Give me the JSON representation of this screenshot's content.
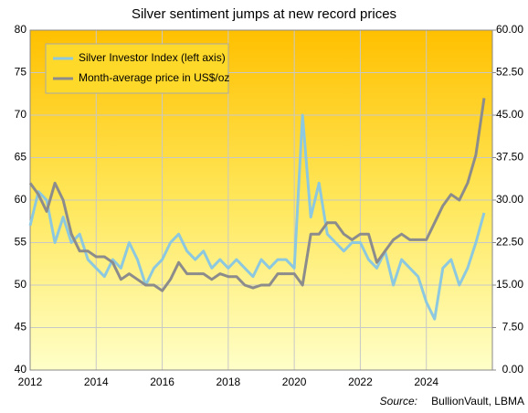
{
  "chart_data": {
    "type": "line",
    "title": "Silver sentiment jumps at new record prices",
    "source_label": "Source:",
    "source": "BullionVault, LBMA",
    "legend": "upper left",
    "grid": true,
    "xlim": [
      2012,
      2026
    ],
    "xticks": [
      2012,
      2014,
      2016,
      2018,
      2020,
      2022,
      2024
    ],
    "ylim": [
      40,
      80
    ],
    "yticks": [
      40,
      45,
      50,
      55,
      60,
      65,
      70,
      75,
      80
    ],
    "y2lim": [
      0,
      60
    ],
    "y2ticks": [
      {
        "value": 0,
        "label": "0.00"
      },
      {
        "value": 7.5,
        "label": "7.50"
      },
      {
        "value": 15,
        "label": "15.00"
      },
      {
        "value": 22.5,
        "label": "22.50"
      },
      {
        "value": 30,
        "label": "30.00"
      },
      {
        "value": 37.5,
        "label": "37.50"
      },
      {
        "value": 45,
        "label": "45.00"
      },
      {
        "value": 52.5,
        "label": "52.50"
      },
      {
        "value": 60,
        "label": "60.00"
      }
    ],
    "x": [
      2012,
      2012.25,
      2012.5,
      2012.75,
      2013,
      2013.25,
      2013.5,
      2013.75,
      2014,
      2014.25,
      2014.5,
      2014.75,
      2015,
      2015.25,
      2015.5,
      2015.75,
      2016,
      2016.25,
      2016.5,
      2016.75,
      2017,
      2017.25,
      2017.5,
      2017.75,
      2018,
      2018.25,
      2018.5,
      2018.75,
      2019,
      2019.25,
      2019.5,
      2019.75,
      2020,
      2020.25,
      2020.5,
      2020.75,
      2021,
      2021.25,
      2021.5,
      2021.75,
      2022,
      2022.25,
      2022.5,
      2022.75,
      2023,
      2023.25,
      2023.5,
      2023.75,
      2024,
      2024.25,
      2024.5,
      2024.75,
      2025,
      2025.25,
      2025.5,
      2025.75
    ],
    "series": [
      {
        "name": "Silver Investor Index (left axis)",
        "color": "#8cc8e0",
        "axis": "y",
        "values": [
          57,
          61,
          60,
          55,
          58,
          55,
          56,
          53,
          52,
          51,
          53,
          52,
          55,
          53,
          50,
          52,
          53,
          55,
          56,
          54,
          53,
          54,
          52,
          53,
          52,
          53,
          52,
          51,
          53,
          52,
          53,
          53,
          52,
          70,
          58,
          62,
          56,
          55,
          54,
          55,
          55,
          53,
          52,
          54,
          50,
          53,
          52,
          51,
          48,
          46,
          52,
          53,
          50,
          52,
          55,
          58.5
        ]
      },
      {
        "name": "Month-average price in US$/oz",
        "color": "#8c8c8c",
        "axis": "y2",
        "values": [
          33,
          31,
          28,
          33,
          30,
          24,
          21,
          21,
          20,
          20,
          19,
          16,
          17,
          16,
          15,
          15,
          14,
          16,
          19,
          17,
          17,
          17,
          16,
          17,
          16.5,
          16.5,
          15,
          14.5,
          15,
          15,
          17,
          17,
          17,
          15,
          24,
          24,
          26,
          26,
          24,
          23,
          24,
          24,
          19,
          21,
          23,
          24,
          23,
          23,
          23,
          26,
          29,
          31,
          30,
          33,
          38,
          48
        ]
      }
    ]
  }
}
